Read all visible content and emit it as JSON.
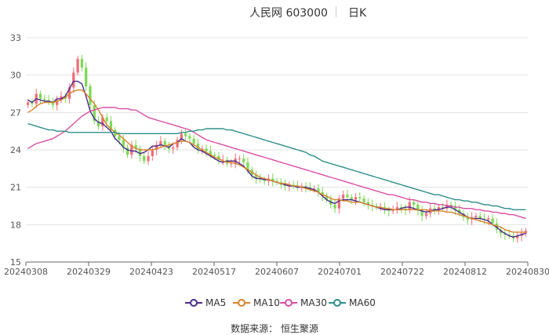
{
  "header": {
    "stock": "人民网 603000",
    "period": "日K"
  },
  "source": "数据来源： 恒生聚源",
  "legend": [
    {
      "name": "MA5",
      "color": "#4b2a8c"
    },
    {
      "name": "MA10",
      "color": "#d9822b"
    },
    {
      "name": "MA30",
      "color": "#d94fa3"
    },
    {
      "name": "MA60",
      "color": "#2f8f8a"
    }
  ],
  "chart_data": {
    "type": "candlestick",
    "ylim": [
      15,
      33
    ],
    "yticks": [
      15,
      18,
      21,
      24,
      27,
      30,
      33
    ],
    "xtick_labels": [
      "20240308",
      "20240329",
      "20240423",
      "20240517",
      "20240607",
      "20240701",
      "20240722",
      "20240812",
      "20240830"
    ],
    "up_color": "#f06e7a",
    "down_color": "#7ed957",
    "close": [
      27.8,
      27.7,
      28.5,
      28.1,
      28.0,
      27.9,
      27.6,
      28.0,
      28.3,
      28.1,
      29.0,
      30.2,
      31.3,
      30.6,
      29.1,
      27.6,
      26.3,
      25.9,
      26.6,
      26.3,
      25.6,
      25.1,
      24.8,
      24.2,
      23.6,
      24.4,
      24.1,
      23.5,
      23.1,
      23.5,
      24.0,
      24.4,
      24.7,
      24.3,
      24.1,
      24.2,
      24.8,
      25.3,
      25.1,
      24.9,
      24.5,
      24.0,
      24.1,
      23.9,
      23.6,
      23.5,
      23.2,
      23.2,
      22.9,
      22.9,
      23.3,
      23.3,
      23.0,
      22.4,
      22.0,
      21.7,
      21.6,
      21.5,
      21.7,
      21.5,
      21.4,
      21.2,
      21.1,
      21.2,
      21.1,
      21.0,
      21.1,
      21.0,
      20.9,
      20.9,
      20.6,
      20.3,
      20.0,
      19.6,
      19.3,
      20.1,
      20.4,
      20.2,
      20.0,
      20.2,
      20.1,
      19.8,
      19.6,
      19.5,
      19.4,
      19.4,
      19.2,
      19.1,
      19.2,
      19.4,
      19.3,
      19.2,
      19.8,
      19.6,
      19.1,
      18.7,
      18.9,
      19.3,
      19.2,
      19.4,
      19.3,
      19.6,
      19.5,
      19.2,
      18.9,
      18.6,
      18.4,
      18.6,
      18.7,
      18.5,
      18.4,
      18.5,
      18.1,
      17.6,
      17.3,
      17.2,
      17.1,
      16.9,
      17.1,
      17.3,
      17.5
    ],
    "ma5": [
      28.0,
      27.8,
      28.1,
      28.0,
      27.9,
      27.9,
      27.8,
      28.1,
      28.1,
      28.3,
      28.9,
      29.5,
      29.5,
      29.3,
      28.3,
      27.1,
      26.5,
      26.2,
      26.1,
      25.8,
      25.5,
      24.9,
      24.6,
      24.2,
      24.0,
      23.9,
      23.9,
      23.7,
      23.8,
      24.0,
      24.3,
      24.3,
      24.4,
      24.3,
      24.2,
      24.5,
      24.6,
      24.9,
      24.7,
      24.6,
      24.2,
      24.0,
      23.9,
      23.7,
      23.5,
      23.3,
      23.1,
      23.0,
      23.1,
      23.1,
      23.1,
      22.9,
      22.7,
      22.3,
      21.9,
      21.7,
      21.7,
      21.6,
      21.6,
      21.5,
      21.4,
      21.3,
      21.2,
      21.1,
      21.1,
      21.0,
      21.0,
      21.0,
      20.9,
      20.8,
      20.6,
      20.3,
      20.0,
      19.8,
      19.7,
      19.9,
      20.0,
      20.0,
      20.0,
      19.9,
      19.8,
      19.7,
      19.6,
      19.5,
      19.4,
      19.3,
      19.2,
      19.2,
      19.2,
      19.2,
      19.3,
      19.4,
      19.4,
      19.3,
      19.2,
      19.1,
      19.0,
      19.1,
      19.2,
      19.2,
      19.3,
      19.4,
      19.4,
      19.2,
      19.0,
      18.8,
      18.6,
      18.5,
      18.5,
      18.5,
      18.4,
      18.3,
      18.0,
      17.8,
      17.5,
      17.3,
      17.1,
      17.0,
      17.1,
      17.2,
      17.3
    ],
    "ma10": [
      27.0,
      27.2,
      27.5,
      27.7,
      27.8,
      27.8,
      27.8,
      27.9,
      28.0,
      28.2,
      28.5,
      28.7,
      28.8,
      28.8,
      28.5,
      28.1,
      27.7,
      27.2,
      26.6,
      26.0,
      25.7,
      25.4,
      25.2,
      24.9,
      24.6,
      24.3,
      24.1,
      24.0,
      24.0,
      24.0,
      24.0,
      24.1,
      24.2,
      24.3,
      24.4,
      24.5,
      24.6,
      24.7,
      24.7,
      24.6,
      24.4,
      24.2,
      24.0,
      23.8,
      23.6,
      23.4,
      23.3,
      23.1,
      23.0,
      23.0,
      22.9,
      22.8,
      22.6,
      22.4,
      22.2,
      22.0,
      21.8,
      21.7,
      21.6,
      21.5,
      21.4,
      21.3,
      21.3,
      21.2,
      21.1,
      21.1,
      21.0,
      20.9,
      20.8,
      20.7,
      20.6,
      20.4,
      20.3,
      20.1,
      20.0,
      20.0,
      19.9,
      19.9,
      19.8,
      19.8,
      19.8,
      19.7,
      19.6,
      19.5,
      19.4,
      19.4,
      19.3,
      19.3,
      19.2,
      19.2,
      19.2,
      19.2,
      19.2,
      19.2,
      19.2,
      19.2,
      19.2,
      19.1,
      19.1,
      19.1,
      19.1,
      19.0,
      19.0,
      18.9,
      18.8,
      18.7,
      18.6,
      18.5,
      18.4,
      18.3,
      18.2,
      18.1,
      18.0,
      17.9,
      17.8,
      17.6,
      17.5,
      17.4,
      17.4,
      17.4,
      17.4
    ],
    "ma30": [
      24.1,
      24.3,
      24.5,
      24.6,
      24.7,
      24.8,
      24.9,
      25.1,
      25.3,
      25.5,
      25.8,
      26.1,
      26.4,
      26.7,
      26.9,
      27.1,
      27.2,
      27.3,
      27.4,
      27.4,
      27.4,
      27.4,
      27.3,
      27.3,
      27.3,
      27.2,
      27.2,
      27.0,
      26.8,
      26.6,
      26.5,
      26.4,
      26.3,
      26.2,
      26.1,
      26.0,
      25.9,
      25.8,
      25.7,
      25.6,
      25.4,
      25.2,
      25.0,
      24.8,
      24.7,
      24.6,
      24.5,
      24.4,
      24.3,
      24.2,
      24.1,
      24.0,
      23.9,
      23.8,
      23.7,
      23.6,
      23.5,
      23.4,
      23.3,
      23.2,
      23.1,
      23.0,
      22.9,
      22.8,
      22.7,
      22.6,
      22.5,
      22.4,
      22.3,
      22.2,
      22.1,
      22.0,
      21.9,
      21.8,
      21.7,
      21.6,
      21.5,
      21.4,
      21.3,
      21.2,
      21.1,
      21.0,
      20.9,
      20.8,
      20.7,
      20.6,
      20.5,
      20.4,
      20.4,
      20.3,
      20.2,
      20.1,
      20.0,
      20.0,
      19.9,
      19.8,
      19.8,
      19.7,
      19.7,
      19.6,
      19.6,
      19.5,
      19.5,
      19.4,
      19.4,
      19.3,
      19.3,
      19.3,
      19.2,
      19.2,
      19.1,
      19.1,
      19.0,
      19.0,
      18.9,
      18.9,
      18.8,
      18.8,
      18.7,
      18.6,
      18.5
    ],
    "ma60": [
      26.1,
      26.0,
      25.9,
      25.8,
      25.7,
      25.6,
      25.6,
      25.5,
      25.5,
      25.5,
      25.4,
      25.4,
      25.4,
      25.4,
      25.4,
      25.4,
      25.4,
      25.4,
      25.4,
      25.4,
      25.4,
      25.4,
      25.3,
      25.3,
      25.3,
      25.3,
      25.3,
      25.3,
      25.3,
      25.3,
      25.3,
      25.3,
      25.3,
      25.3,
      25.3,
      25.3,
      25.3,
      25.4,
      25.4,
      25.5,
      25.5,
      25.6,
      25.6,
      25.7,
      25.7,
      25.7,
      25.7,
      25.7,
      25.6,
      25.6,
      25.5,
      25.4,
      25.3,
      25.2,
      25.1,
      25.0,
      24.9,
      24.8,
      24.7,
      24.6,
      24.5,
      24.4,
      24.3,
      24.2,
      24.1,
      24.0,
      23.9,
      23.8,
      23.6,
      23.5,
      23.3,
      23.1,
      23.0,
      22.9,
      22.8,
      22.7,
      22.6,
      22.5,
      22.4,
      22.3,
      22.2,
      22.1,
      22.0,
      21.9,
      21.8,
      21.7,
      21.6,
      21.5,
      21.4,
      21.3,
      21.2,
      21.1,
      21.0,
      20.9,
      20.8,
      20.7,
      20.6,
      20.5,
      20.4,
      20.4,
      20.3,
      20.2,
      20.1,
      20.0,
      20.0,
      19.9,
      19.9,
      19.8,
      19.8,
      19.7,
      19.6,
      19.6,
      19.5,
      19.5,
      19.4,
      19.3,
      19.3,
      19.2,
      19.2,
      19.2,
      19.2
    ]
  }
}
